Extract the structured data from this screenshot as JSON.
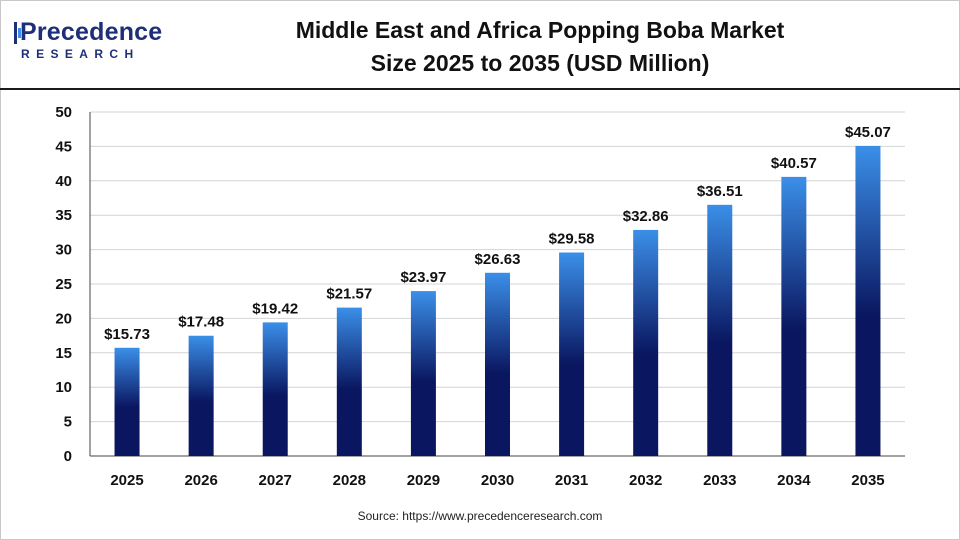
{
  "logo": {
    "main": "Precedence",
    "sub": "RESEARCH"
  },
  "source": "Source: https://www.precedenceresearch.com",
  "colors": {
    "bar_top": "#3b8fe8",
    "bar_bottom": "#0a1660",
    "grid": "#d4d4d4",
    "brand": "#1e2f78"
  },
  "chart_data": {
    "type": "bar",
    "title_line1": "Middle East and Africa Popping Boba Market",
    "title_line2": "Size 2025 to 2035 (USD Million)",
    "xlabel": "",
    "ylabel": "",
    "categories": [
      "2025",
      "2026",
      "2027",
      "2028",
      "2029",
      "2030",
      "2031",
      "2032",
      "2033",
      "2034",
      "2035"
    ],
    "values": [
      15.73,
      17.48,
      19.42,
      21.57,
      23.97,
      26.63,
      29.58,
      32.86,
      36.51,
      40.57,
      45.07
    ],
    "data_labels": [
      "$15.73",
      "$17.48",
      "$19.42",
      "$21.57",
      "$23.97",
      "$26.63",
      "$29.58",
      "$32.86",
      "$36.51",
      "$40.57",
      "$45.07"
    ],
    "yticks": [
      0,
      5,
      10,
      15,
      20,
      25,
      30,
      35,
      40,
      45,
      50
    ],
    "ylim": [
      0,
      50
    ],
    "grid": true,
    "legend": "none"
  }
}
